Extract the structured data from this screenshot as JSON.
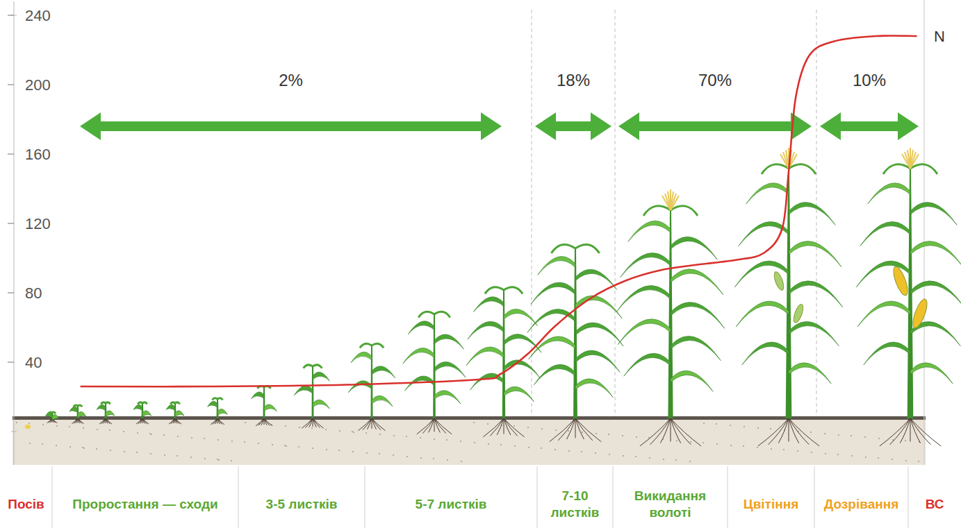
{
  "chart_data": {
    "type": "line",
    "xlim": [
      0,
      100
    ],
    "ylim": [
      0,
      240
    ],
    "yticks": [
      40,
      80,
      120,
      160,
      200,
      240
    ],
    "tick_labels": "y",
    "grid": false,
    "series": [
      {
        "name": "N",
        "color": "#d9302c",
        "x": [
          7.3,
          21.4,
          36.6,
          51.1,
          53.4,
          56.5,
          59.5,
          63.4,
          67.2,
          71.0,
          74.8,
          79.4,
          82.4,
          84.4,
          85.1,
          85.9,
          87.4,
          90.1,
          94.7,
          99.2
        ],
        "values": [
          26,
          26,
          27,
          30,
          33,
          45,
          61,
          77,
          87,
          93,
          96,
          99,
          103,
          117,
          149,
          193,
          217,
          225,
          228,
          228
        ]
      }
    ],
    "uptake_shares": {
      "values": [
        2,
        18,
        70,
        10
      ],
      "value_labels": [
        "2%",
        "18%",
        "70%",
        "10%"
      ],
      "color": "#4caf3a"
    },
    "stages": {
      "labels": [
        "Посів",
        "Проростання — сходи",
        "3-5 листків",
        "5-7 листків",
        "7-10 листків",
        "Викидання волоті",
        "Цвітіння",
        "Дозрівання",
        "ВС"
      ],
      "colors": [
        "#d9302c",
        "#5aa832",
        "#5aa832",
        "#5aa832",
        "#5aa832",
        "#5aa832",
        "#f0a020",
        "#f0a020",
        "#d9302c"
      ]
    }
  }
}
